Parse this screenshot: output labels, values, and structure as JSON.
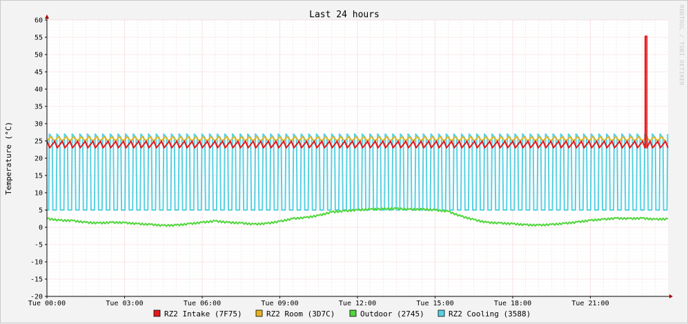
{
  "chart_data": {
    "type": "line",
    "title": "Last 24 hours",
    "xlabel": "",
    "ylabel": "Temperature (°C)",
    "watermark": "RRDTOOL / TOBI OETIKER",
    "ylim": [
      -20,
      60
    ],
    "y_ticks": [
      "60",
      "55",
      "50",
      "45",
      "40",
      "35",
      "30",
      "25",
      "20",
      "15",
      "10",
      "5",
      "0",
      "-5",
      "-10",
      "-15",
      "-20"
    ],
    "xlim": [
      0,
      24
    ],
    "x_ticks": [
      "Tue 00:00",
      "Tue 03:00",
      "Tue 06:00",
      "Tue 09:00",
      "Tue 12:00",
      "Tue 15:00",
      "Tue 18:00",
      "Tue 21:00"
    ],
    "grid": true,
    "legend_position": "bottom",
    "series": [
      {
        "name": "RZ2 Intake (7F75)",
        "color": "#e31a1c",
        "pattern": {
          "kind": "sawtooth",
          "low": 23.0,
          "high": 25.0,
          "period_h": 0.295
        },
        "events": [
          {
            "start_h": 23.12,
            "end_h": 23.18,
            "value": 55.3
          }
        ]
      },
      {
        "name": "RZ2 Room (3D7C)",
        "color": "#e6b422",
        "pattern": {
          "kind": "wave",
          "low": 25.0,
          "high": 26.2,
          "period_h": 0.295
        }
      },
      {
        "name": "Outdoor (2745)",
        "color": "#4fd63a",
        "x": [
          0,
          0.5,
          1,
          1.5,
          2,
          2.5,
          3,
          3.5,
          4,
          4.5,
          5,
          5.5,
          6,
          6.5,
          7,
          7.5,
          8,
          8.5,
          9,
          9.5,
          10,
          10.5,
          11,
          11.5,
          12,
          12.5,
          13,
          13.5,
          14,
          14.5,
          15,
          15.5,
          16,
          16.5,
          17,
          17.5,
          18,
          18.5,
          19,
          19.5,
          20,
          20.5,
          21,
          21.5,
          22,
          22.5,
          23,
          23.5,
          24
        ],
        "values": [
          2.5,
          2.0,
          1.9,
          1.4,
          1.2,
          1.4,
          1.3,
          1.0,
          0.8,
          0.5,
          0.6,
          1.0,
          1.4,
          1.8,
          1.4,
          1.2,
          0.9,
          1.1,
          1.7,
          2.5,
          2.8,
          3.4,
          4.4,
          4.7,
          5.0,
          5.2,
          5.3,
          5.4,
          5.2,
          5.2,
          5.0,
          4.6,
          3.2,
          2.2,
          1.4,
          1.2,
          1.0,
          0.7,
          0.6,
          0.8,
          1.1,
          1.5,
          2.0,
          2.3,
          2.6,
          2.5,
          2.6,
          2.3,
          2.4
        ]
      },
      {
        "name": "RZ2 Cooling (3588)",
        "color": "#56d1e3",
        "pattern": {
          "kind": "pulse",
          "low": 5.0,
          "high": 27.0,
          "period_h": 0.295,
          "duty": 0.55
        }
      }
    ]
  }
}
